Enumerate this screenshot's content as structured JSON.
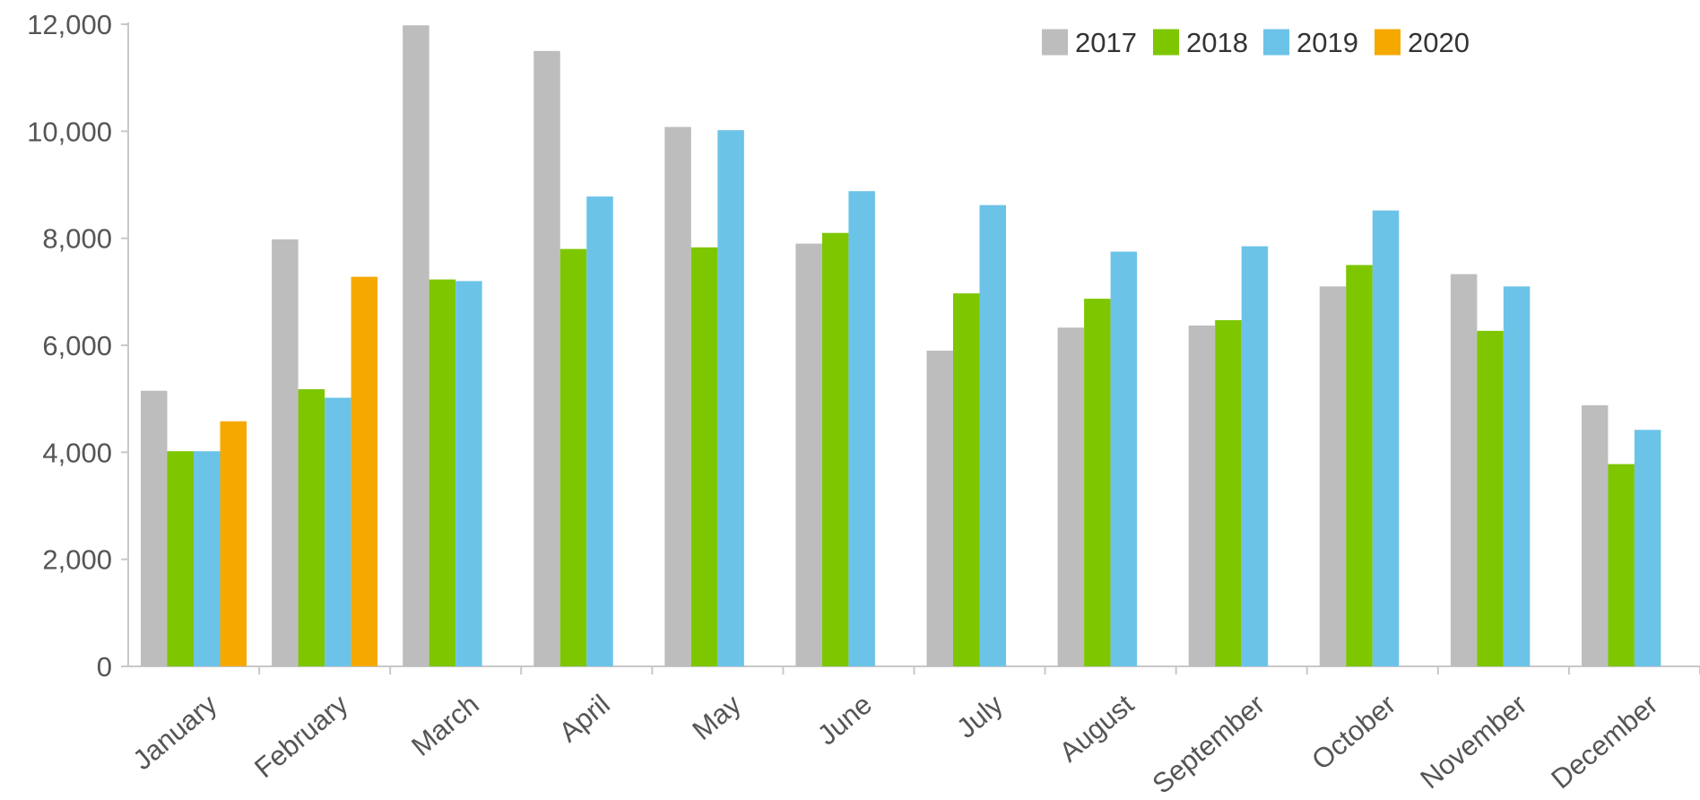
{
  "chart_data": {
    "type": "bar",
    "title": "",
    "xlabel": "",
    "ylabel": "",
    "ylim": [
      0,
      12000
    ],
    "yticks": [
      0,
      2000,
      4000,
      6000,
      8000,
      10000,
      12000
    ],
    "ytick_labels": [
      "0",
      "2,000",
      "4,000",
      "6,000",
      "8,000",
      "10,000",
      "12,000"
    ],
    "grid": false,
    "legend_position": "top-right",
    "categories": [
      "January",
      "February",
      "March",
      "April",
      "May",
      "June",
      "July",
      "August",
      "September",
      "October",
      "November",
      "December"
    ],
    "series": [
      {
        "name": "2017",
        "color": "#BDBDBD",
        "values": [
          5150,
          7980,
          11980,
          11500,
          10080,
          7900,
          5900,
          6330,
          6370,
          7100,
          7330,
          4880
        ]
      },
      {
        "name": "2018",
        "color": "#7EC600",
        "values": [
          4020,
          5180,
          7230,
          7800,
          7830,
          8100,
          6970,
          6870,
          6470,
          7500,
          6270,
          3780
        ]
      },
      {
        "name": "2019",
        "color": "#6CC3E8",
        "values": [
          4020,
          5020,
          7200,
          8780,
          10020,
          8880,
          8620,
          7750,
          7850,
          8520,
          7100,
          4420
        ]
      },
      {
        "name": "2020",
        "color": "#F5A800",
        "values": [
          4580,
          7280,
          null,
          null,
          null,
          null,
          null,
          null,
          null,
          null,
          null,
          null
        ]
      }
    ]
  }
}
